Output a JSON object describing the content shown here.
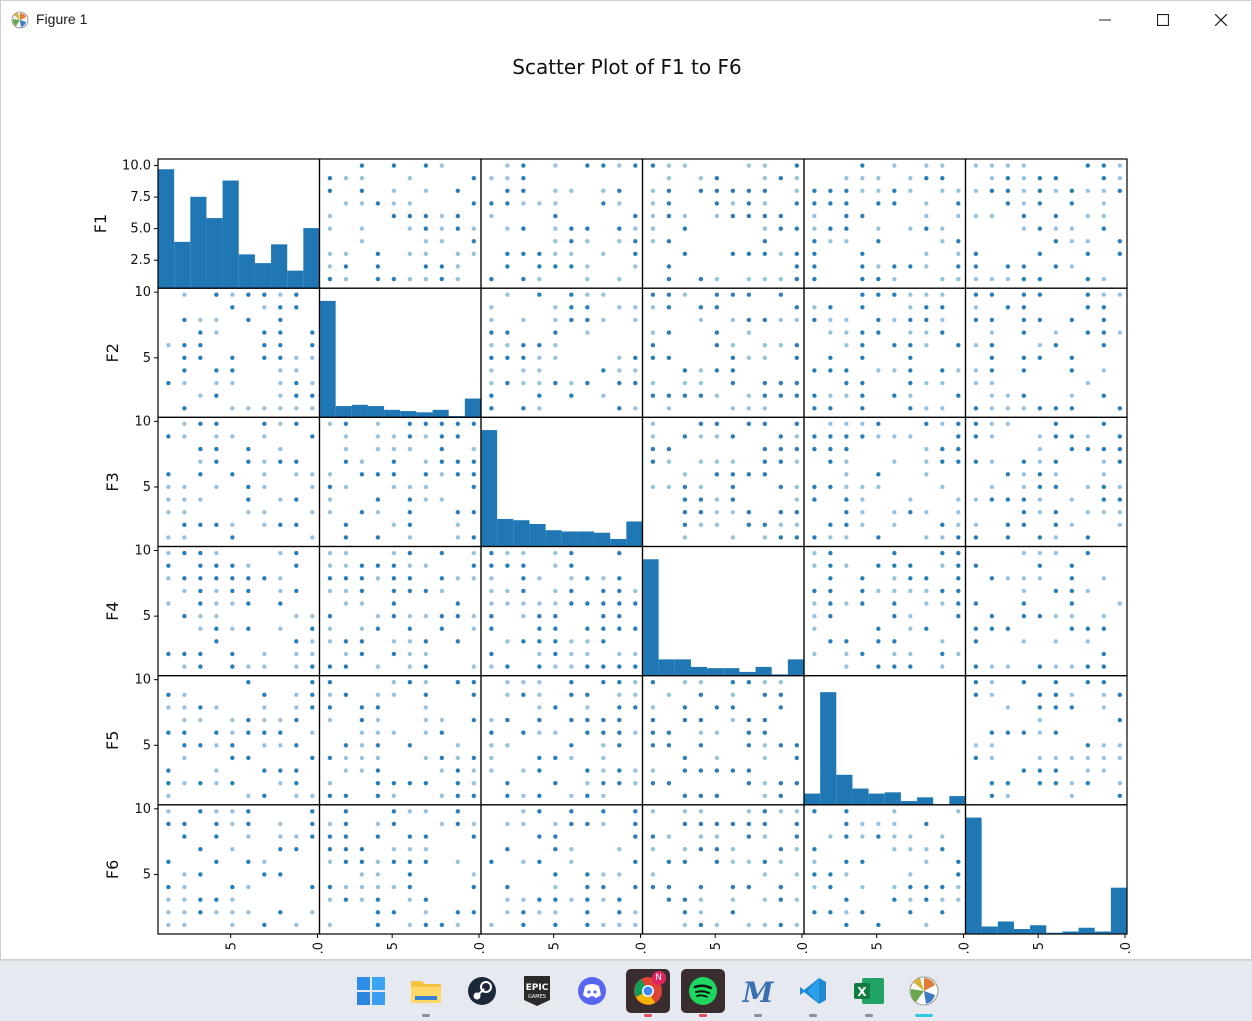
{
  "window": {
    "title": "Figure 1"
  },
  "chart_data": {
    "type": "scatter_matrix",
    "title": "Scatter Plot of F1 to F6",
    "variables": [
      "F1",
      "F2",
      "F3",
      "F4",
      "F5",
      "F6"
    ],
    "value_range": [
      0,
      10
    ],
    "ytick_labels": {
      "F1": [
        "10.0",
        "7.5",
        "5.0",
        "2.5"
      ],
      "F2": [
        "10",
        "5"
      ],
      "F3": [
        "10",
        "5"
      ],
      "F4": [
        "10",
        "5"
      ],
      "F5": [
        "10",
        "5"
      ],
      "F6": [
        "10",
        "5"
      ]
    },
    "xtick_labels_visible": [
      "5",
      ".0",
      "5",
      ".0",
      "5",
      ".0",
      "5",
      ".0",
      "5",
      ".0",
      "5",
      ".0"
    ],
    "histograms": {
      "F1": [
        9.5,
        3.7,
        7.3,
        5.6,
        8.6,
        2.7,
        2.0,
        3.5,
        1.4,
        4.8
      ],
      "F2": [
        9.3,
        0.9,
        1.0,
        0.9,
        0.6,
        0.5,
        0.4,
        0.6,
        0.1,
        1.5
      ],
      "F3": [
        9.3,
        2.2,
        2.1,
        1.8,
        1.3,
        1.2,
        1.2,
        1.1,
        0.6,
        2.0
      ],
      "F4": [
        9.3,
        1.3,
        1.3,
        0.7,
        0.6,
        0.6,
        0.3,
        0.7,
        0.1,
        1.3
      ],
      "F5": [
        0.9,
        9.0,
        2.4,
        1.3,
        0.9,
        1.0,
        0.3,
        0.6,
        0.0,
        0.7
      ],
      "F6": [
        9.3,
        0.6,
        1.0,
        0.4,
        0.7,
        0.1,
        0.2,
        0.5,
        0.2,
        3.7
      ]
    },
    "grid": false,
    "colors": {
      "points": "#1f77b4",
      "bars": "#1f77b4"
    }
  },
  "taskbar": {
    "items": [
      {
        "name": "start",
        "icon": "windows-start-icon"
      },
      {
        "name": "file-explorer",
        "icon": "folder-icon"
      },
      {
        "name": "steam",
        "icon": "steam-icon"
      },
      {
        "name": "epic-games",
        "icon": "epic-games-icon",
        "label": "EPIC"
      },
      {
        "name": "discord",
        "icon": "discord-icon"
      },
      {
        "name": "chrome",
        "icon": "chrome-icon",
        "badge": "N"
      },
      {
        "name": "spotify",
        "icon": "spotify-icon"
      },
      {
        "name": "app-m",
        "icon": "m-app-icon",
        "label": "M"
      },
      {
        "name": "vscode",
        "icon": "vscode-icon"
      },
      {
        "name": "excel",
        "icon": "excel-icon",
        "label": "X"
      },
      {
        "name": "matplotlib",
        "icon": "matplotlib-icon"
      }
    ]
  }
}
